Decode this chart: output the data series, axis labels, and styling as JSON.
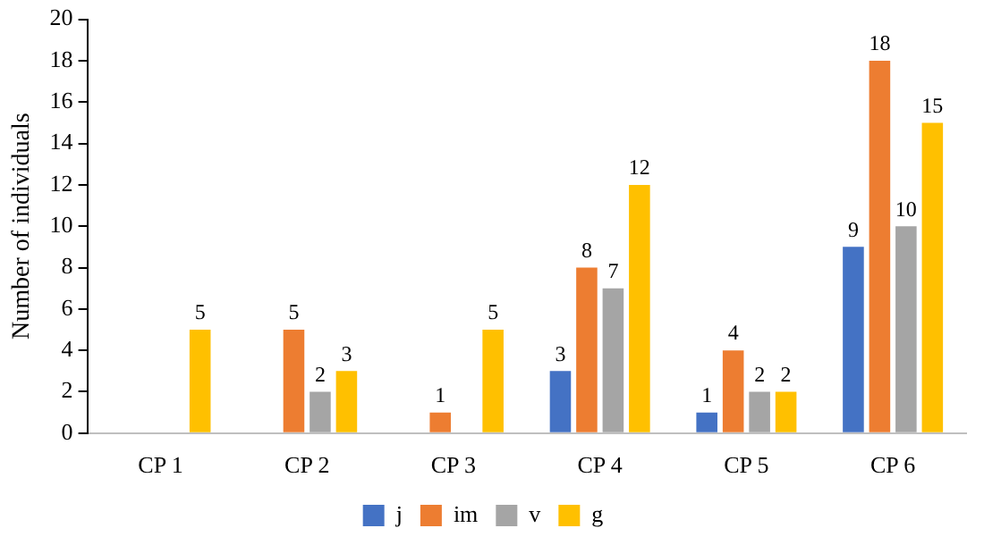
{
  "chart_data": {
    "type": "bar",
    "ylabel": "Number of individuals",
    "categories": [
      "CP 1",
      "CP 2",
      "CP 3",
      "CP 4",
      "CP 5",
      "CP 6"
    ],
    "series": [
      {
        "name": "j",
        "color": "#4472c4",
        "values": [
          0,
          0,
          0,
          3,
          1,
          9
        ],
        "value_labels": [
          null,
          null,
          null,
          "3",
          "1",
          "9"
        ]
      },
      {
        "name": "im",
        "color": "#ed7d31",
        "values": [
          0,
          5,
          1,
          8,
          4,
          18
        ],
        "value_labels": [
          null,
          "5",
          "1",
          "8",
          "4",
          "18"
        ]
      },
      {
        "name": "v",
        "color": "#a5a5a5",
        "values": [
          0,
          2,
          0,
          7,
          2,
          10
        ],
        "value_labels": [
          null,
          "2",
          null,
          "7",
          "2",
          "10"
        ]
      },
      {
        "name": "g",
        "color": "#ffc000",
        "values": [
          5,
          3,
          5,
          12,
          2,
          15
        ],
        "value_labels": [
          "5",
          "3",
          "5",
          "12",
          "2",
          "15"
        ]
      }
    ],
    "ylim": [
      0,
      20
    ],
    "yticks": [
      0,
      2,
      4,
      6,
      8,
      10,
      12,
      14,
      16,
      18,
      20
    ],
    "grid": false,
    "legend": "bottom"
  }
}
